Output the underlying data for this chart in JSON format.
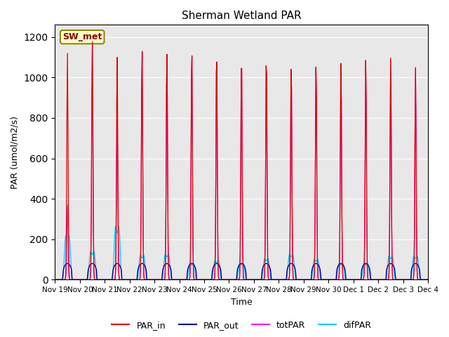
{
  "title": "Sherman Wetland PAR",
  "ylabel": "PAR (umol/m2/s)",
  "xlabel": "Time",
  "legend_label": "SW_met",
  "ylim": [
    0,
    1260
  ],
  "yticks": [
    0,
    200,
    400,
    600,
    800,
    1000,
    1200
  ],
  "xlim": [
    0,
    15
  ],
  "colors": {
    "PAR_in": "#dd0000",
    "PAR_out": "#000099",
    "totPAR": "#ff00ff",
    "difPAR": "#00ccff"
  },
  "legend_entries": [
    "PAR_in",
    "PAR_out",
    "totPAR",
    "difPAR"
  ],
  "bg_color": "#e8e8e8",
  "num_days": 15,
  "par_in_peaks": [
    1120,
    1180,
    1110,
    1150,
    1150,
    1160,
    1150,
    1140,
    1130,
    1090,
    1085,
    1090,
    1095,
    1100,
    1050
  ],
  "totpar_peaks": [
    370,
    1175,
    800,
    1150,
    1145,
    1155,
    1145,
    1135,
    1125,
    1085,
    1080,
    1085,
    1090,
    1090,
    1045
  ],
  "difpar_peaks": [
    340,
    220,
    410,
    190,
    200,
    130,
    150,
    130,
    165,
    200,
    160,
    130,
    130,
    185,
    185
  ],
  "parout_val": 80,
  "tick_labels": [
    "Nov 19",
    "Nov 20",
    "Nov 21",
    "Nov 22",
    "Nov 23",
    "Nov 24",
    "Nov 25",
    "Nov 26",
    "Nov 27",
    "Nov 28",
    "Nov 29",
    "Nov 30",
    "Dec 1",
    "Dec 2",
    "Dec 3",
    "Dec 4"
  ],
  "figsize": [
    6.4,
    4.8
  ],
  "dpi": 100
}
